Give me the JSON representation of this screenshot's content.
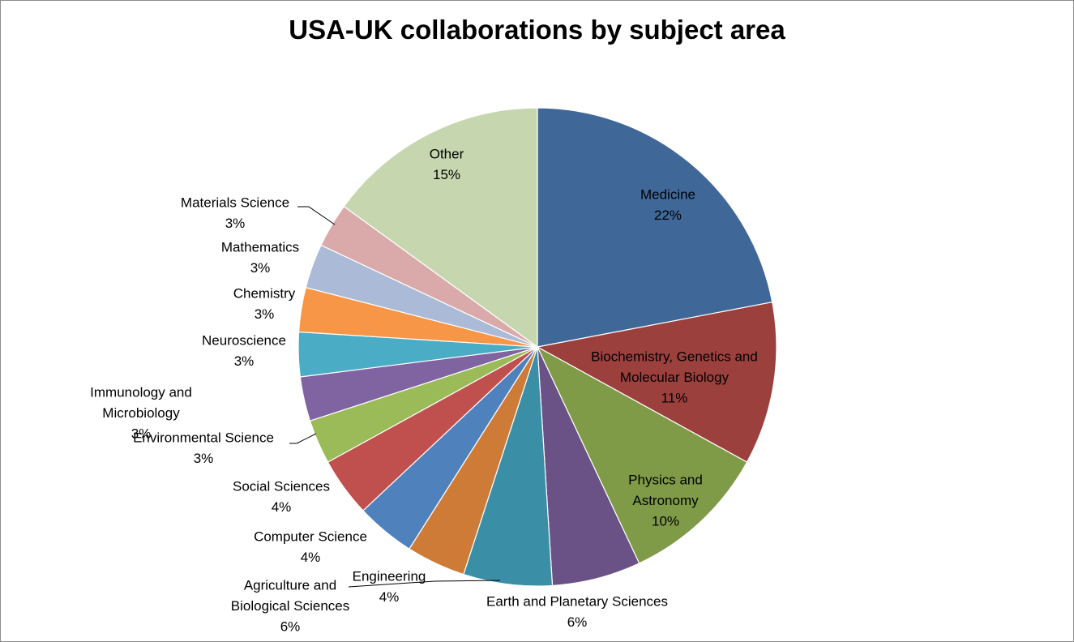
{
  "chart_data": {
    "type": "pie",
    "title": "USA-UK collaborations by subject area",
    "slices": [
      {
        "name": "Medicine",
        "value": 22,
        "pct": "22%",
        "color": "#3f6899"
      },
      {
        "name": "Biochemistry, Genetics and Molecular Biology",
        "value": 11,
        "pct": "11%",
        "color": "#9c403e"
      },
      {
        "name": "Physics and Astronomy",
        "value": 10,
        "pct": "10%",
        "color": "#7f9b48"
      },
      {
        "name": "Earth and Planetary Sciences",
        "value": 6,
        "pct": "6%",
        "color": "#6a5186"
      },
      {
        "name": "Agriculture and Biological Sciences",
        "value": 6,
        "pct": "6%",
        "color": "#3a8ea5"
      },
      {
        "name": "Engineering",
        "value": 4,
        "pct": "4%",
        "color": "#ce7b38"
      },
      {
        "name": "Computer Science",
        "value": 4,
        "pct": "4%",
        "color": "#4f81bd"
      },
      {
        "name": "Social Sciences",
        "value": 4,
        "pct": "4%",
        "color": "#c0504d"
      },
      {
        "name": "Environmental Science",
        "value": 3,
        "pct": "3%",
        "color": "#9bbb59"
      },
      {
        "name": "Immunology and Microbiology",
        "value": 3,
        "pct": "3%",
        "color": "#8064a2"
      },
      {
        "name": "Neuroscience",
        "value": 3,
        "pct": "3%",
        "color": "#4bacc6"
      },
      {
        "name": "Chemistry",
        "value": 3,
        "pct": "3%",
        "color": "#f79646"
      },
      {
        "name": "Mathematics",
        "value": 3,
        "pct": "3%",
        "color": "#aabad7"
      },
      {
        "name": "Materials Science",
        "value": 3,
        "pct": "3%",
        "color": "#d9aaa9"
      },
      {
        "name": "Other",
        "value": 15,
        "pct": "15%",
        "color": "#c6d7af"
      }
    ]
  }
}
